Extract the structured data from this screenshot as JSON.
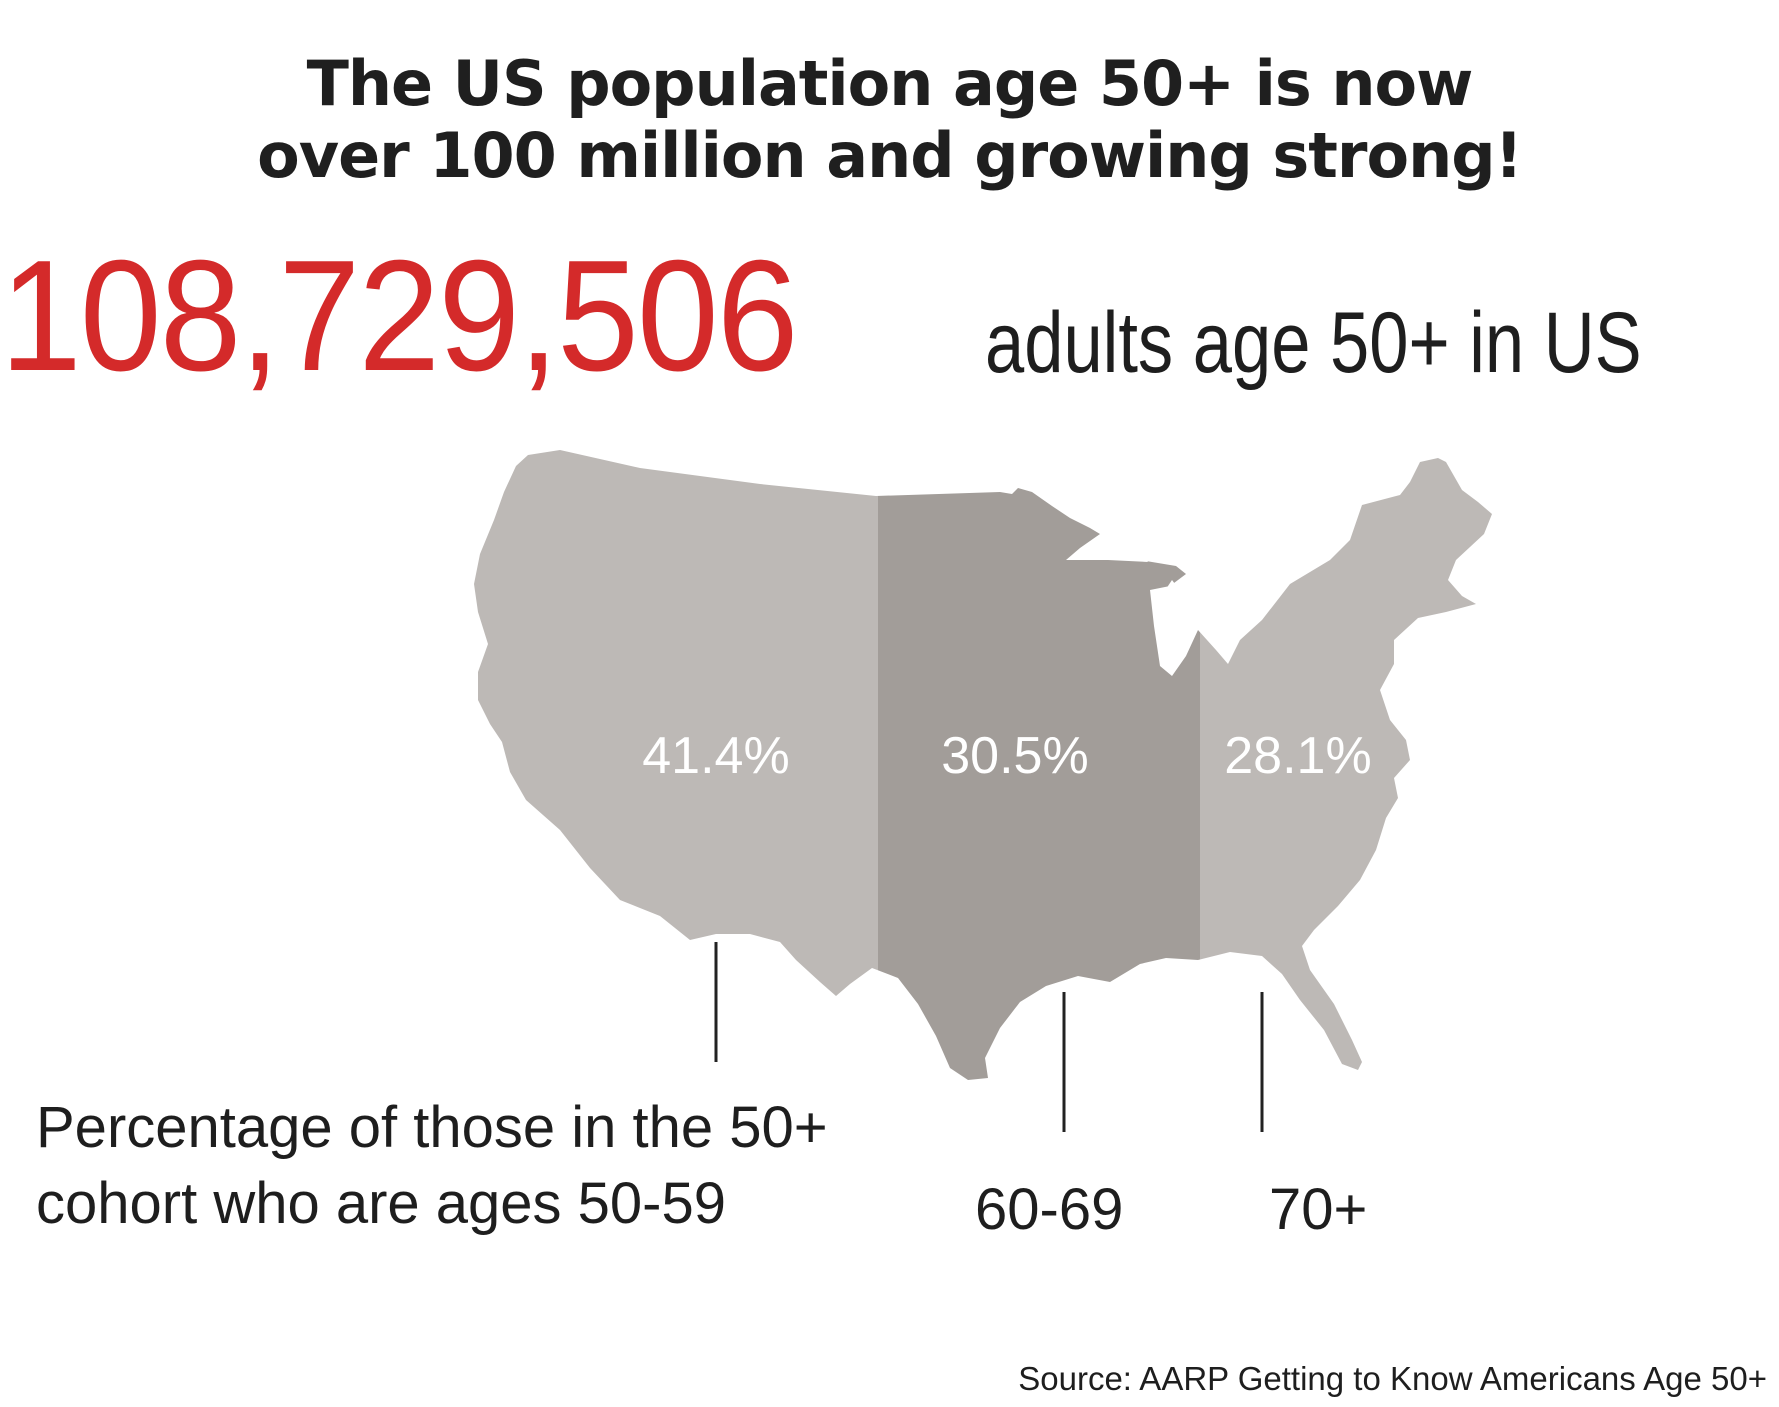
{
  "headline": {
    "line1": "The US population age 50+ is now",
    "line2": "over 100 million and growing strong!"
  },
  "total": {
    "number": "108,729,506",
    "caption": "adults age 50+ in US"
  },
  "regions": [
    {
      "name": "west",
      "percent_label": "41.4%",
      "color": "#bdb9b6"
    },
    {
      "name": "central",
      "percent_label": "30.5%",
      "color": "#a29d99"
    },
    {
      "name": "east",
      "percent_label": "28.1%",
      "color": "#bdb9b6"
    }
  ],
  "legend": {
    "line1": "Percentage of those in the 50+",
    "line2": "cohort who are ages 50-59",
    "age_60": "60-69",
    "age_70": "70+"
  },
  "source": "Source: AARP Getting to Know Americans Age 50+",
  "colors": {
    "accent_red": "#d42a2a",
    "map_light": "#bdb9b6",
    "map_dark": "#a29d99"
  }
}
